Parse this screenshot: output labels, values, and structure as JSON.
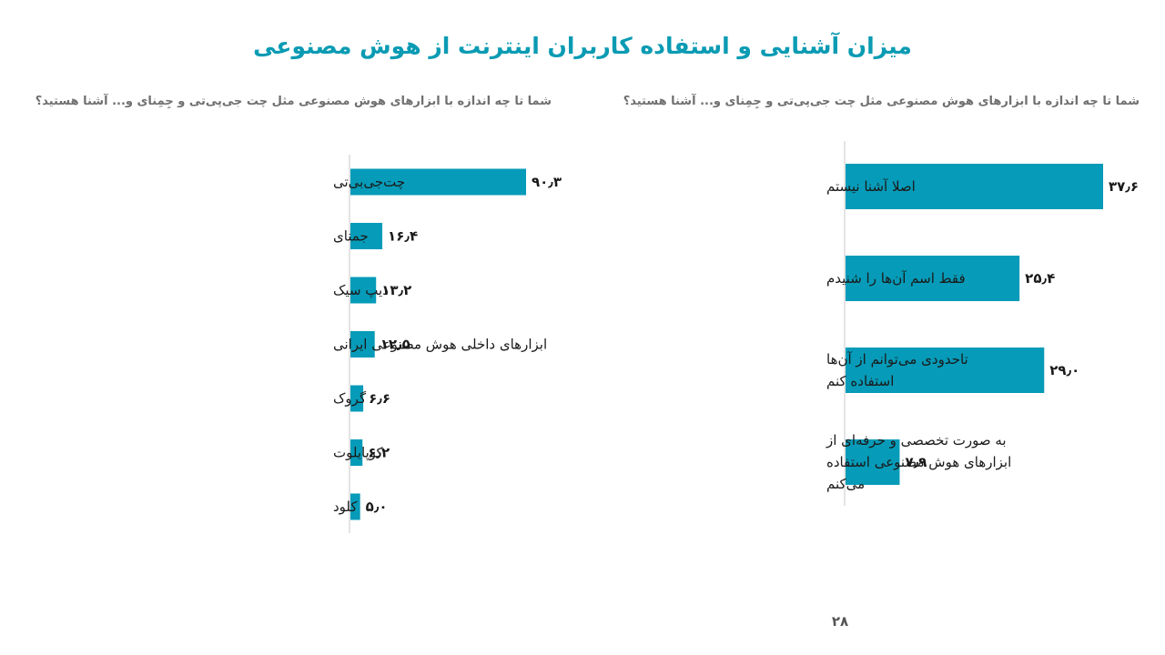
{
  "page": {
    "title": "میزان آشنایی و استفاده کاربران اینترنت از هوش مصنوعی",
    "page_number": "۲۸"
  },
  "colors": {
    "accent": "#0a9bb3",
    "bar": "#069bb8",
    "axis": "#c8c8c8",
    "question": "#6f6f6f"
  },
  "chart_data": [
    {
      "type": "bar",
      "orientation": "horizontal",
      "title": "شما تا چه اندازه با ابزارهای هوش مصنوعی مثل چت جی‌پی‌تی و جِمِنای و... آشنا هستید؟",
      "categories": [
        "اصلا آشنا نیستم",
        "فقط اسم آن‌ها را شنیدم",
        "تاحدودی می‌توانم از آن‌ها استفاده کنم",
        "به صورت تخصصی و حرفه‌ای از ابزارهای هوش مصنوعی استفاده می‌کنم"
      ],
      "category_lines": [
        [
          "اصلا آشنا نیستم"
        ],
        [
          "فقط اسم آن‌ها را شنیدم"
        ],
        [
          "تاحدودی می‌توانم از آن‌ها",
          "استفاده کنم"
        ],
        [
          "به صورت تخصصی و حرفه‌ای از",
          "ابزارهای هوش مصنوعی استفاده",
          "می‌کنم"
        ]
      ],
      "values": [
        37.6,
        25.4,
        29.0,
        7.9
      ],
      "value_labels": [
        "۳۷٫۶",
        "۲۵٫۴",
        "۲۹٫۰",
        "۷٫۹"
      ],
      "xlim": [
        0,
        37.6
      ],
      "grid": false
    },
    {
      "type": "bar",
      "orientation": "horizontal",
      "title": "شما تا چه اندازه با ابزارهای هوش مصنوعی مثل چت جی‌پی‌تی و جِمِنای و... آشنا هستید؟",
      "categories": [
        "چت‌جی‌بی‌تی",
        "جمنای",
        "دیپ سیک",
        "ابزارهای داخلی هوش مصنوعی ایرانی",
        "گروک",
        "کوپایلوت",
        "کلود"
      ],
      "values": [
        90.3,
        16.4,
        13.2,
        12.5,
        6.6,
        6.2,
        5.0
      ],
      "value_labels": [
        "۹۰٫۳",
        "۱۶٫۴",
        "۱۳٫۲",
        "۱۲٫۵",
        "۶٫۶",
        "۶٫۲",
        "۵٫۰"
      ],
      "xlim": [
        0,
        90.3
      ],
      "grid": false
    }
  ]
}
